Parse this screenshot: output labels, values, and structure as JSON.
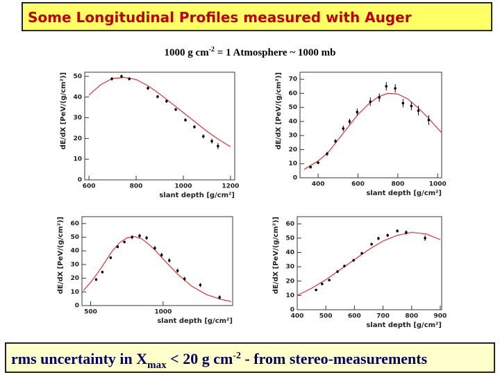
{
  "title": "Some Longitudinal Profiles measured with Auger",
  "subtitle": [
    "1000 g cm",
    "-2",
    " = 1 Atmosphere ~ 1000 mb"
  ],
  "footer": [
    "rms uncertainty in X",
    "max",
    " < 20 g cm",
    "-2",
    "  - from stereo-measurements"
  ],
  "chart_data": [
    {
      "type": "scatter",
      "xlabel": "slant depth [g/cm²]",
      "ylabel": "dE/dX [PeV/(g/cm²)]",
      "xlim": [
        582,
        1218
      ],
      "xticks": [
        600,
        800,
        1000,
        1200
      ],
      "ylim": [
        0,
        52
      ],
      "yticks": [
        0,
        10,
        20,
        30,
        40,
        50
      ],
      "color": "#000000",
      "fit_color": "#e03030",
      "x": [
        697,
        738,
        771,
        850,
        891,
        929,
        968,
        1009,
        1047,
        1085,
        1121,
        1147
      ],
      "values": [
        48.8,
        50,
        48.8,
        44.3,
        40.2,
        38,
        34,
        28.9,
        25.6,
        21,
        18.7,
        16.3
      ],
      "errors": [
        0.8,
        0.8,
        0.8,
        0.8,
        0.8,
        0.8,
        0.8,
        0.8,
        0.8,
        1,
        1.2,
        1.5
      ],
      "fit": {
        "x": [
          600,
          650,
          700,
          750,
          800,
          850,
          900,
          950,
          1000,
          1050,
          1100,
          1150,
          1200
        ],
        "values": [
          41,
          46,
          49,
          49.5,
          48.5,
          45.5,
          41.5,
          37,
          32.5,
          28,
          23.5,
          19.5,
          16
        ]
      }
    },
    {
      "type": "scatter",
      "xlabel": "slant depth [g/cm²]",
      "ylabel": "dE/dX [PeV/(g/cm²)]",
      "xlim": [
        309,
        1020
      ],
      "xticks": [
        400,
        600,
        800,
        1000
      ],
      "ylim": [
        0,
        75
      ],
      "yticks": [
        0,
        10,
        20,
        30,
        40,
        50,
        60,
        70
      ],
      "color": "#000000",
      "fit_color": "#e03030",
      "x": [
        362,
        400,
        445,
        487,
        526,
        558,
        596,
        662,
        707,
        742,
        787,
        826,
        868,
        903,
        955
      ],
      "values": [
        7.6,
        10.7,
        17,
        26,
        35,
        40,
        46.7,
        54,
        57,
        65,
        63.5,
        53,
        51,
        47.7,
        41
      ],
      "errors": [
        1,
        1,
        1.5,
        1.5,
        2,
        2,
        2.5,
        3,
        3,
        3,
        3,
        3,
        3,
        3.5,
        3.5
      ],
      "fit": {
        "x": [
          330,
          400,
          450,
          500,
          550,
          600,
          650,
          700,
          750,
          800,
          850,
          900,
          950,
          1000,
          1020
        ],
        "values": [
          6,
          12,
          18,
          27,
          36,
          45,
          52,
          57.5,
          60,
          59.5,
          56,
          50,
          43,
          35,
          32
        ]
      }
    },
    {
      "type": "scatter",
      "xlabel": "slant depth [g/cm²]",
      "ylabel": "dE/dX [PeV/(g/cm²)]",
      "xlim": [
        440,
        1480
      ],
      "xticks": [
        500,
        1000
      ],
      "ylim": [
        0,
        65
      ],
      "yticks": [
        0,
        10,
        20,
        30,
        40,
        50,
        60
      ],
      "color": "#000000",
      "fit_color": "#e03030",
      "x": [
        538,
        581,
        638,
        686,
        733,
        786,
        838,
        886,
        943,
        990,
        1043,
        1100,
        1148,
        1257,
        1390
      ],
      "values": [
        19,
        24.5,
        35,
        43,
        46.5,
        50,
        51,
        49.5,
        42,
        37,
        33,
        25.5,
        19.5,
        15,
        6
      ],
      "errors": [
        1,
        1,
        1,
        1,
        1,
        1.5,
        1.5,
        1.5,
        1.5,
        1.5,
        1.5,
        1.5,
        1.5,
        1.5,
        1.5
      ],
      "fit": {
        "x": [
          450,
          500,
          550,
          600,
          650,
          700,
          750,
          800,
          850,
          900,
          950,
          1000,
          1100,
          1200,
          1300,
          1400,
          1470
        ],
        "values": [
          11,
          17,
          24,
          32,
          40,
          46,
          49.5,
          50.5,
          49,
          45,
          40,
          34,
          23,
          14,
          8,
          4.5,
          3
        ]
      }
    },
    {
      "type": "scatter",
      "xlabel": "slant depth [g/cm²]",
      "ylabel": "dE/dX [PeV/(g/cm²)]",
      "xlim": [
        400,
        905
      ],
      "xticks": [
        400,
        500,
        600,
        700,
        800,
        900
      ],
      "ylim": [
        0,
        65
      ],
      "yticks": [
        0,
        10,
        20,
        30,
        40,
        50,
        60
      ],
      "color": "#000000",
      "fit_color": "#e03030",
      "x": [
        466,
        487,
        512,
        541,
        565,
        597,
        626,
        660,
        684,
        716,
        750,
        781,
        847
      ],
      "values": [
        13.8,
        18,
        20.7,
        26.6,
        30.5,
        34.5,
        39.4,
        45.8,
        49.8,
        52,
        55,
        54,
        50
      ],
      "errors": [
        0.8,
        0.8,
        0.8,
        1,
        1,
        1,
        1,
        1,
        1.2,
        1.2,
        1.2,
        1.5,
        2
      ],
      "fit": {
        "x": [
          400,
          450,
          500,
          550,
          600,
          650,
          700,
          750,
          800,
          850,
          900
        ],
        "values": [
          10,
          15,
          21,
          28,
          35,
          42,
          48,
          52,
          54,
          53,
          49
        ]
      }
    }
  ]
}
